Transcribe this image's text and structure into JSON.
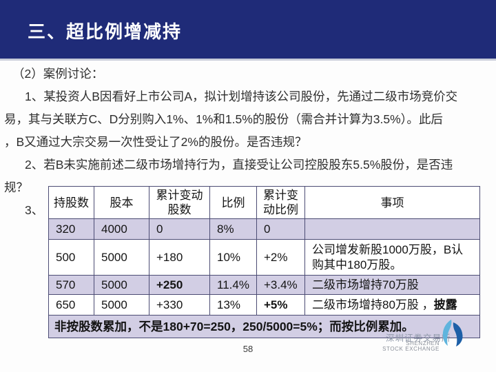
{
  "slide": {
    "title": "三、超比例增减持",
    "page_number": "58"
  },
  "body": {
    "lines": [
      {
        "t": "（2）案例讨论：",
        "ind": 1
      },
      {
        "t": "1、某投资人B因看好上市公司A，拟计划增持该公司股份，先通过二级市场竞价交",
        "ind": 2
      },
      {
        "t": "易，其与关联方C、D分别购入1%、1%和1.5%的股份（需合并计算为3.5%）。此后",
        "ind": 0
      },
      {
        "t": "，B又通过大宗交易一次性受让了2%的股份。是否违规？",
        "ind": 0
      },
      {
        "t": "2、若B未实施前述二级市场增持行为，直接受让公司控股股东5.5%股份，是否违",
        "ind": 2
      },
      {
        "t": "规？",
        "ind": 0
      },
      {
        "t": "3、",
        "ind": 2
      }
    ]
  },
  "table": {
    "headers": [
      "持股数",
      "股本",
      "累计变动股数",
      "比例",
      "累计变动比例",
      "事项"
    ],
    "rows": [
      {
        "shade": true,
        "cells": [
          [
            {
              "t": "320"
            }
          ],
          [
            {
              "t": "4000"
            }
          ],
          [
            {
              "t": "0"
            }
          ],
          [
            {
              "t": "8%"
            }
          ],
          [
            {
              "t": "0"
            }
          ],
          []
        ]
      },
      {
        "shade": false,
        "cells": [
          [
            {
              "t": "500"
            }
          ],
          [
            {
              "t": "5000"
            }
          ],
          [
            {
              "t": "+180"
            }
          ],
          [
            {
              "t": "10%"
            }
          ],
          [
            {
              "t": "+2%"
            }
          ],
          [
            {
              "t": "公司增发新股1000万股，B认购其中180万股。"
            }
          ]
        ]
      },
      {
        "shade": true,
        "cells": [
          [
            {
              "t": "570"
            }
          ],
          [
            {
              "t": "5000"
            }
          ],
          [
            {
              "t": "+250",
              "b": true
            }
          ],
          [
            {
              "t": "11.4%"
            }
          ],
          [
            {
              "t": "+3.4%"
            }
          ],
          [
            {
              "t": "二级市场增持70万股"
            }
          ]
        ]
      },
      {
        "shade": false,
        "cells": [
          [
            {
              "t": "650"
            }
          ],
          [
            {
              "t": "5000"
            }
          ],
          [
            {
              "t": "+330"
            }
          ],
          [
            {
              "t": "13%"
            }
          ],
          [
            {
              "t": "+5%",
              "b": true
            }
          ],
          [
            {
              "t": "二级市场增持80万股 ，"
            },
            {
              "t": "披露",
              "b": true
            }
          ]
        ]
      }
    ],
    "footer": "非按股数累加，不是180+70=250，250/5000=5%；而按比例累加。"
  },
  "logo": {
    "cn": "深圳证券交易所",
    "en_line1": "SHENZHEN",
    "en_line2": "STOCK EXCHANGE"
  },
  "colors": {
    "header_band": "#1f2b78",
    "row_shade": "#d2cee4",
    "table_border": "#4b4b73",
    "logo_blue_light": "#5fb4dd",
    "logo_blue_dark": "#1d5fa7",
    "title_text": "#ffffff"
  }
}
